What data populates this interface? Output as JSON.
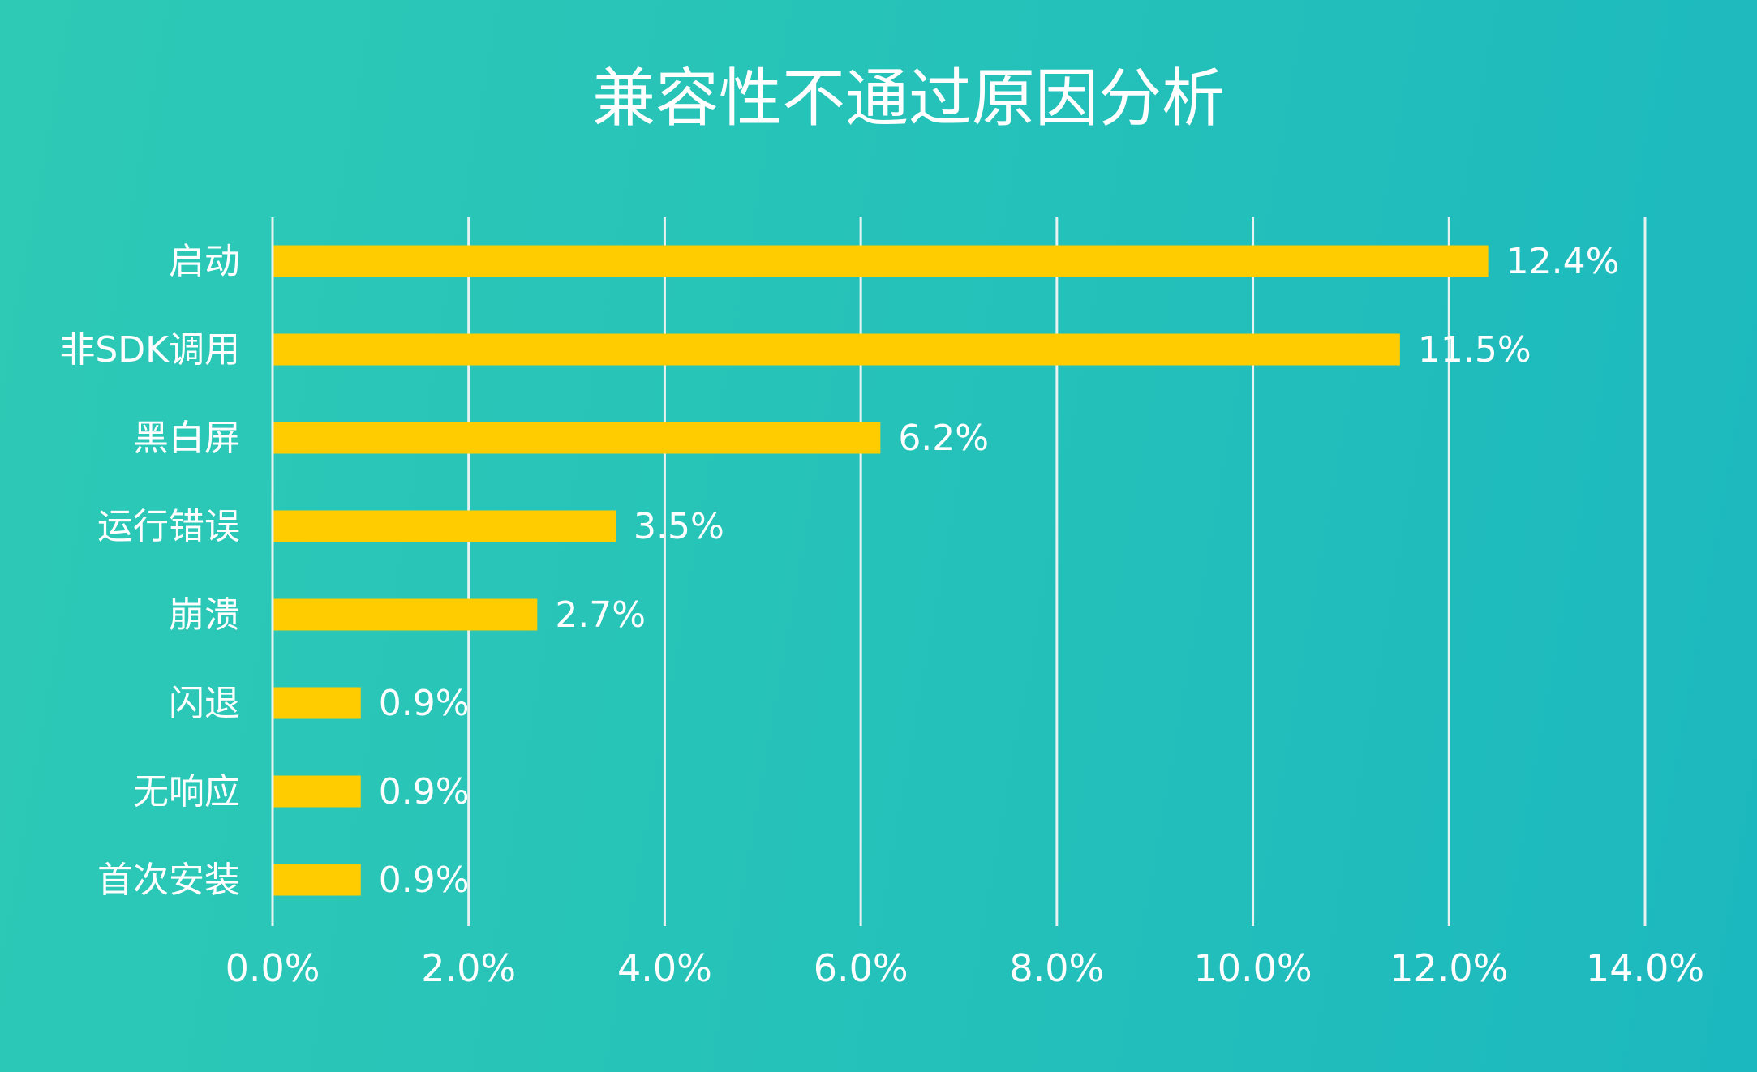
{
  "chart_data": {
    "type": "bar",
    "orientation": "horizontal",
    "title": "兼容性不通过原因分析",
    "categories": [
      "启动",
      "非SDK调用",
      "黑白屏",
      "运行错误",
      "崩溃",
      "闪退",
      "无响应",
      "首次安装"
    ],
    "values": [
      12.4,
      11.5,
      6.2,
      3.5,
      2.7,
      0.9,
      0.9,
      0.9
    ],
    "value_labels": [
      "12.4%",
      "11.5%",
      "6.2%",
      "3.5%",
      "2.7%",
      "0.9%",
      "0.9%",
      "0.9%"
    ],
    "xlim": [
      0,
      14
    ],
    "x_ticks": [
      0,
      2,
      4,
      6,
      8,
      10,
      12,
      14
    ],
    "x_tick_labels": [
      "0.0%",
      "2.0%",
      "4.0%",
      "6.0%",
      "8.0%",
      "10.0%",
      "12.0%",
      "14.0%"
    ],
    "grid": true,
    "legend": "none",
    "bar_color": "#ffcc00",
    "grid_color": "#e6f3f1"
  }
}
